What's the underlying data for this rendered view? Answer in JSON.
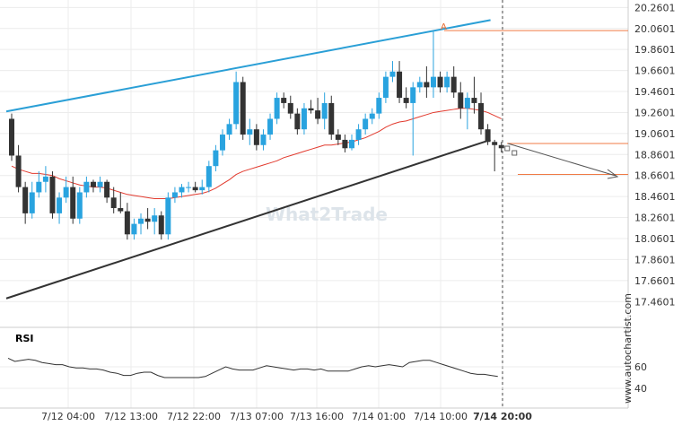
{
  "chart_data": {
    "type": "candlestick",
    "price_axis": {
      "ticks": [
        "20.2601",
        "20.0601",
        "19.8601",
        "19.6601",
        "19.4601",
        "19.2601",
        "19.0601",
        "18.8601",
        "18.6601",
        "18.4601",
        "18.2601",
        "18.0601",
        "17.8601",
        "17.6601",
        "17.4601"
      ],
      "ylim": [
        17.3,
        20.28
      ]
    },
    "x_ticks": [
      "7/12 04:00",
      "7/12 13:00",
      "7/12 22:00",
      "7/13 07:00",
      "7/13 16:00",
      "7/14 01:00",
      "7/14 10:00",
      "7/14 20:00"
    ],
    "candles": [
      [
        19.2,
        19.25,
        18.8,
        18.85
      ],
      [
        18.85,
        18.95,
        18.5,
        18.55
      ],
      [
        18.55,
        18.6,
        18.2,
        18.3
      ],
      [
        18.3,
        18.6,
        18.25,
        18.5
      ],
      [
        18.5,
        18.7,
        18.45,
        18.6
      ],
      [
        18.6,
        18.75,
        18.5,
        18.65
      ],
      [
        18.65,
        18.7,
        18.25,
        18.3
      ],
      [
        18.3,
        18.5,
        18.2,
        18.45
      ],
      [
        18.45,
        18.65,
        18.4,
        18.55
      ],
      [
        18.55,
        18.65,
        18.2,
        18.25
      ],
      [
        18.25,
        18.55,
        18.2,
        18.5
      ],
      [
        18.5,
        18.65,
        18.45,
        18.6
      ],
      [
        18.6,
        18.62,
        18.5,
        18.55
      ],
      [
        18.55,
        18.65,
        18.5,
        18.6
      ],
      [
        18.6,
        18.62,
        18.4,
        18.45
      ],
      [
        18.45,
        18.55,
        18.3,
        18.35
      ],
      [
        18.35,
        18.5,
        18.3,
        18.32
      ],
      [
        18.32,
        18.4,
        18.05,
        18.1
      ],
      [
        18.1,
        18.25,
        18.05,
        18.2
      ],
      [
        18.2,
        18.3,
        18.1,
        18.25
      ],
      [
        18.25,
        18.35,
        18.15,
        18.22
      ],
      [
        18.22,
        18.35,
        18.1,
        18.28
      ],
      [
        18.28,
        18.32,
        18.05,
        18.1
      ],
      [
        18.1,
        18.5,
        18.05,
        18.45
      ],
      [
        18.45,
        18.55,
        18.4,
        18.5
      ],
      [
        18.5,
        18.58,
        18.45,
        18.55
      ],
      [
        18.55,
        18.6,
        18.5,
        18.55
      ],
      [
        18.55,
        18.6,
        18.5,
        18.52
      ],
      [
        18.52,
        18.62,
        18.48,
        18.55
      ],
      [
        18.55,
        18.8,
        18.5,
        18.75
      ],
      [
        18.75,
        18.95,
        18.7,
        18.9
      ],
      [
        18.9,
        19.1,
        18.85,
        19.05
      ],
      [
        19.05,
        19.2,
        19.0,
        19.15
      ],
      [
        19.15,
        19.65,
        19.1,
        19.55
      ],
      [
        19.55,
        19.6,
        19.0,
        19.05
      ],
      [
        19.05,
        19.2,
        18.95,
        19.1
      ],
      [
        19.1,
        19.15,
        18.9,
        18.95
      ],
      [
        18.95,
        19.1,
        18.9,
        19.05
      ],
      [
        19.05,
        19.25,
        19.0,
        19.2
      ],
      [
        19.2,
        19.45,
        19.15,
        19.4
      ],
      [
        19.4,
        19.45,
        19.3,
        19.35
      ],
      [
        19.35,
        19.42,
        19.2,
        19.25
      ],
      [
        19.25,
        19.3,
        19.05,
        19.1
      ],
      [
        19.1,
        19.35,
        19.05,
        19.3
      ],
      [
        19.3,
        19.38,
        19.25,
        19.28
      ],
      [
        19.28,
        19.4,
        19.15,
        19.2
      ],
      [
        19.2,
        19.45,
        19.1,
        19.35
      ],
      [
        19.35,
        19.42,
        19.0,
        19.05
      ],
      [
        19.05,
        19.1,
        18.95,
        19.0
      ],
      [
        19.0,
        19.05,
        18.88,
        18.92
      ],
      [
        18.92,
        19.05,
        18.9,
        19.0
      ],
      [
        19.0,
        19.15,
        18.95,
        19.1
      ],
      [
        19.1,
        19.25,
        19.05,
        19.2
      ],
      [
        19.2,
        19.3,
        19.15,
        19.25
      ],
      [
        19.25,
        19.45,
        19.2,
        19.4
      ],
      [
        19.4,
        19.65,
        19.35,
        19.6
      ],
      [
        19.6,
        19.75,
        19.55,
        19.65
      ],
      [
        19.65,
        19.75,
        19.35,
        19.4
      ],
      [
        19.4,
        19.5,
        19.3,
        19.35
      ],
      [
        19.35,
        19.55,
        18.85,
        19.5
      ],
      [
        19.5,
        19.6,
        19.45,
        19.55
      ],
      [
        19.55,
        19.7,
        19.4,
        19.5
      ],
      [
        19.5,
        20.03,
        19.4,
        19.6
      ],
      [
        19.6,
        19.65,
        19.45,
        19.5
      ],
      [
        19.5,
        19.65,
        19.45,
        19.6
      ],
      [
        19.6,
        19.7,
        19.4,
        19.45
      ],
      [
        19.45,
        19.55,
        19.2,
        19.3
      ],
      [
        19.3,
        19.45,
        19.1,
        19.4
      ],
      [
        19.4,
        19.6,
        19.25,
        19.35
      ],
      [
        19.35,
        19.45,
        19.05,
        19.1
      ],
      [
        19.1,
        19.15,
        18.95,
        18.98
      ],
      [
        18.98,
        19.0,
        18.7,
        18.95
      ],
      [
        18.95,
        18.98,
        18.88,
        18.92
      ]
    ],
    "sma": [
      18.75,
      18.72,
      18.7,
      18.68,
      18.68,
      18.67,
      18.66,
      18.63,
      18.61,
      18.59,
      18.57,
      18.56,
      18.55,
      18.55,
      18.54,
      18.52,
      18.5,
      18.48,
      18.47,
      18.46,
      18.45,
      18.44,
      18.44,
      18.44,
      18.45,
      18.46,
      18.47,
      18.48,
      18.49,
      18.51,
      18.54,
      18.58,
      18.62,
      18.67,
      18.7,
      18.72,
      18.74,
      18.76,
      18.78,
      18.8,
      18.83,
      18.85,
      18.87,
      18.89,
      18.91,
      18.93,
      18.95,
      18.95,
      18.96,
      18.97,
      18.98,
      19.0,
      19.02,
      19.05,
      19.08,
      19.12,
      19.15,
      19.17,
      19.18,
      19.2,
      19.22,
      19.24,
      19.26,
      19.27,
      19.28,
      19.29,
      19.3,
      19.3,
      19.29,
      19.28,
      19.26,
      19.23,
      19.2
    ],
    "upper_line": {
      "from": [
        0,
        19.27
      ],
      "to": [
        70,
        20.14
      ]
    },
    "lower_line": {
      "from": [
        0,
        17.49
      ],
      "to": [
        70,
        19.0
      ]
    },
    "resistance_level": 20.04,
    "support_level": 18.67,
    "pattern_label": "A",
    "rsi": {
      "label": "RSI",
      "ticks": [
        "60",
        "40"
      ],
      "ylim": [
        30,
        80
      ],
      "values": [
        68,
        65,
        66,
        67,
        66,
        64,
        63,
        62,
        62,
        60,
        59,
        59,
        58,
        58,
        57,
        55,
        54,
        52,
        52,
        54,
        55,
        55,
        52,
        50,
        50,
        50,
        50,
        50,
        50,
        51,
        54,
        57,
        60,
        58,
        57,
        57,
        57,
        59,
        61,
        60,
        59,
        58,
        57,
        58,
        58,
        57,
        58,
        56,
        56,
        56,
        56,
        58,
        60,
        61,
        60,
        61,
        62,
        61,
        60,
        64,
        65,
        66,
        66,
        64,
        62,
        60,
        58,
        56,
        54,
        53,
        53,
        52,
        51
      ]
    },
    "watermark": "What2Trade",
    "source_label": "www.autochartist.com"
  }
}
